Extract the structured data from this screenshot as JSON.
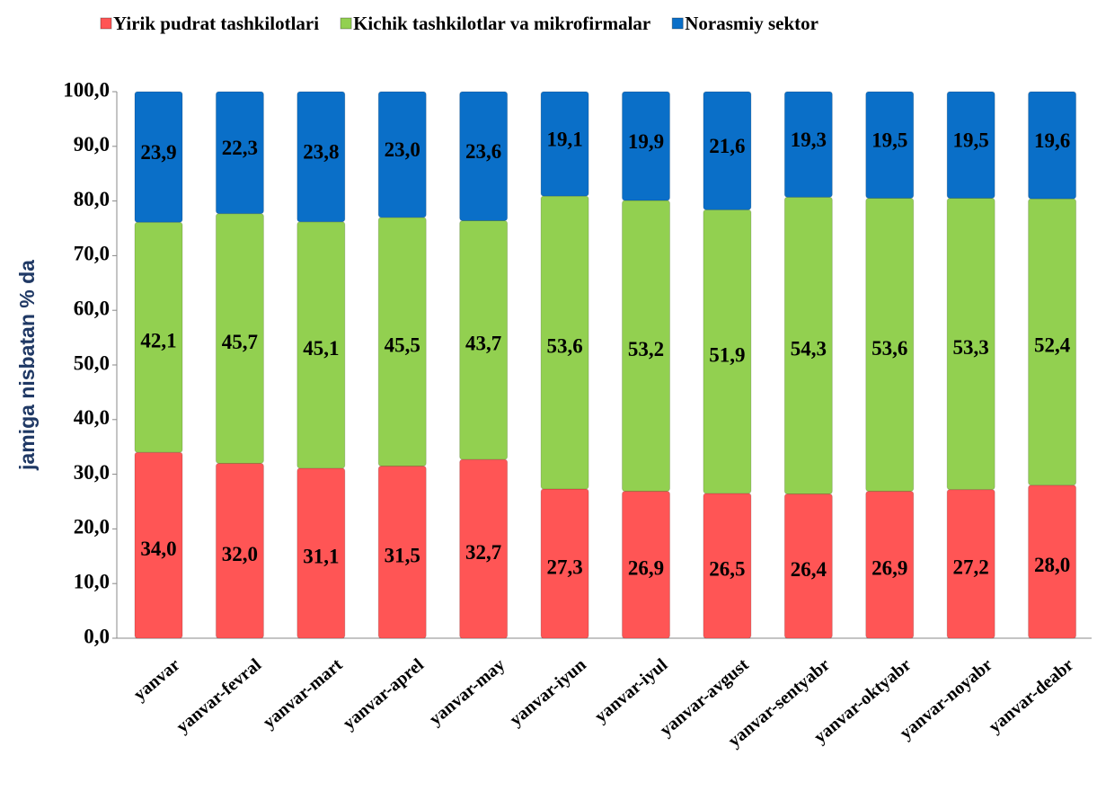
{
  "chart_data": {
    "type": "stacked_bar",
    "y_label": "jamiga nisbatan % da",
    "categories": [
      "yanvar",
      "yanvar-fevral",
      "yanvar-mart",
      "yanvar-aprel",
      "yanvar-may",
      "yanvar-iyun",
      "yanvar-iyul",
      "yanvar-avgust",
      "yanvar-sentyabr",
      "yanvar-oktyabr",
      "yanvar-noyabr",
      "yanvar-deabr"
    ],
    "series": [
      {
        "name": "Yirik pudrat tashkilotlari",
        "color": "#ff5555",
        "values": [
          34.0,
          32.0,
          31.1,
          31.5,
          32.7,
          27.3,
          26.9,
          26.5,
          26.4,
          26.9,
          27.2,
          28.0
        ],
        "value_labels": [
          "34,0",
          "32,0",
          "31,1",
          "31,5",
          "32,7",
          "27,3",
          "26,9",
          "26,5",
          "26,4",
          "26,9",
          "27,2",
          "28,0"
        ]
      },
      {
        "name": "Kichik tashkilotlar va mikrofirmalar",
        "color": "#92d050",
        "values": [
          42.1,
          45.7,
          45.1,
          45.5,
          43.7,
          53.6,
          53.2,
          51.9,
          54.3,
          53.6,
          53.3,
          52.4
        ],
        "value_labels": [
          "42,1",
          "45,7",
          "45,1",
          "45,5",
          "43,7",
          "53,6",
          "53,2",
          "51,9",
          "54,3",
          "53,6",
          "53,3",
          "52,4"
        ]
      },
      {
        "name": "Norasmiy sektor",
        "color": "#0a6fc8",
        "values": [
          23.9,
          22.3,
          23.8,
          23.0,
          23.6,
          19.1,
          19.9,
          21.6,
          19.3,
          19.5,
          19.5,
          19.6
        ],
        "value_labels": [
          "23,9",
          "22,3",
          "23,8",
          "23,0",
          "23,6",
          "19,1",
          "19,9",
          "21,6",
          "19,3",
          "19,5",
          "19,5",
          "19,6"
        ]
      }
    ],
    "ylim": [
      0,
      100
    ],
    "yticks": [
      {
        "value": 0,
        "label": "0,0"
      },
      {
        "value": 10,
        "label": "10,0"
      },
      {
        "value": 20,
        "label": "20,0"
      },
      {
        "value": 30,
        "label": "30,0"
      },
      {
        "value": 40,
        "label": "40,0"
      },
      {
        "value": 50,
        "label": "50,0"
      },
      {
        "value": 60,
        "label": "60,0"
      },
      {
        "value": 70,
        "label": "70,0"
      },
      {
        "value": 80,
        "label": "80,0"
      },
      {
        "value": 90,
        "label": "90,0"
      },
      {
        "value": {
          "value": 100,
          "label": "100,0"
        },
        "label": "100,0"
      }
    ],
    "legend": "top"
  }
}
